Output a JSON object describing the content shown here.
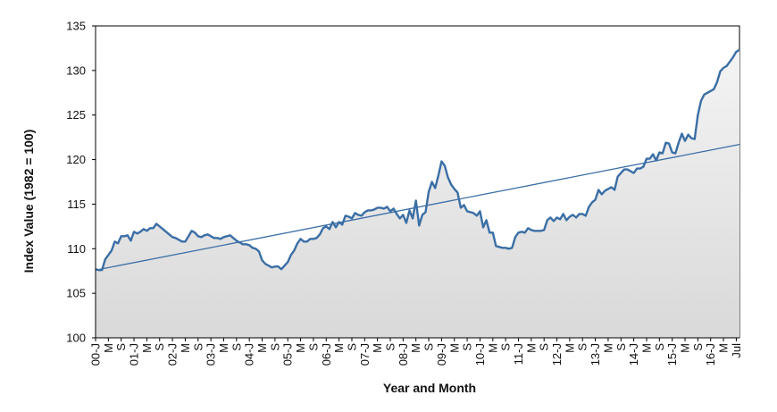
{
  "chart_data": {
    "type": "line",
    "title": "",
    "xlabel": "Year and Month",
    "ylabel": "Index Value (1982 = 100)",
    "ylim": [
      100,
      135
    ],
    "yticks": [
      100,
      105,
      110,
      115,
      120,
      125,
      130,
      135
    ],
    "grid": false,
    "legend": "none",
    "x_tick_labels": [
      "00-J",
      "M",
      "S",
      "01-J",
      "M",
      "S",
      "02-J",
      "M",
      "S",
      "03-J",
      "M",
      "S",
      "04-J",
      "M",
      "S",
      "05-J",
      "M",
      "S",
      "06-J",
      "M",
      "S",
      "07-J",
      "M",
      "S",
      "08-J",
      "M",
      "S",
      "09-J",
      "M",
      "S",
      "10-J",
      "M",
      "S",
      "11-J",
      "M",
      "S",
      "12-J",
      "M",
      "S",
      "13-J",
      "M",
      "S",
      "14-J",
      "M",
      "S",
      "15-J",
      "M",
      "S",
      "16-J",
      "M",
      "Jul"
    ],
    "series": [
      {
        "type": "line",
        "color": "#3a6ea5",
        "points": [
          [
            0,
            107.7
          ],
          [
            1,
            107.6
          ],
          [
            2,
            107.6
          ],
          [
            3,
            108.8
          ],
          [
            4,
            109.3
          ],
          [
            5,
            109.8
          ],
          [
            6,
            110.8
          ],
          [
            7,
            110.6
          ],
          [
            8,
            111.4
          ],
          [
            9,
            111.4
          ],
          [
            10,
            111.5
          ],
          [
            11,
            110.9
          ],
          [
            12,
            111.9
          ],
          [
            13,
            111.7
          ],
          [
            14,
            111.9
          ],
          [
            15,
            112.2
          ],
          [
            16,
            112.0
          ],
          [
            17,
            112.3
          ],
          [
            18,
            112.3
          ],
          [
            19,
            112.8
          ],
          [
            20,
            112.5
          ],
          [
            21,
            112.2
          ],
          [
            22,
            111.9
          ],
          [
            23,
            111.6
          ],
          [
            24,
            111.3
          ],
          [
            25,
            111.2
          ],
          [
            26,
            111.0
          ],
          [
            27,
            110.8
          ],
          [
            28,
            110.8
          ],
          [
            29,
            111.4
          ],
          [
            30,
            112.0
          ],
          [
            31,
            111.8
          ],
          [
            32,
            111.4
          ],
          [
            33,
            111.3
          ],
          [
            34,
            111.5
          ],
          [
            35,
            111.6
          ],
          [
            36,
            111.4
          ],
          [
            37,
            111.2
          ],
          [
            38,
            111.2
          ],
          [
            39,
            111.1
          ],
          [
            40,
            111.3
          ],
          [
            41,
            111.4
          ],
          [
            42,
            111.5
          ],
          [
            43,
            111.2
          ],
          [
            44,
            110.9
          ],
          [
            45,
            110.7
          ],
          [
            46,
            110.5
          ],
          [
            47,
            110.5
          ],
          [
            48,
            110.4
          ],
          [
            49,
            110.1
          ],
          [
            50,
            110.0
          ],
          [
            51,
            109.7
          ],
          [
            52,
            108.7
          ],
          [
            53,
            108.3
          ],
          [
            54,
            108.1
          ],
          [
            55,
            107.9
          ],
          [
            56,
            108.0
          ],
          [
            57,
            108.0
          ],
          [
            58,
            107.7
          ],
          [
            59,
            108.1
          ],
          [
            60,
            108.5
          ],
          [
            61,
            109.3
          ],
          [
            62,
            109.8
          ],
          [
            63,
            110.6
          ],
          [
            64,
            111.1
          ],
          [
            65,
            110.8
          ],
          [
            66,
            110.8
          ],
          [
            67,
            111.1
          ],
          [
            68,
            111.1
          ],
          [
            69,
            111.2
          ],
          [
            70,
            111.6
          ],
          [
            71,
            112.3
          ],
          [
            72,
            112.5
          ],
          [
            73,
            112.2
          ],
          [
            74,
            113.0
          ],
          [
            75,
            112.4
          ],
          [
            76,
            113.0
          ],
          [
            77,
            112.7
          ],
          [
            78,
            113.7
          ],
          [
            79,
            113.6
          ],
          [
            80,
            113.4
          ],
          [
            81,
            114.0
          ],
          [
            82,
            113.8
          ],
          [
            83,
            113.7
          ],
          [
            84,
            114.1
          ],
          [
            85,
            114.3
          ],
          [
            86,
            114.3
          ],
          [
            87,
            114.4
          ],
          [
            88,
            114.6
          ],
          [
            89,
            114.6
          ],
          [
            90,
            114.5
          ],
          [
            91,
            114.7
          ],
          [
            92,
            114.2
          ],
          [
            93,
            114.5
          ],
          [
            94,
            113.9
          ],
          [
            95,
            113.4
          ],
          [
            96,
            113.8
          ],
          [
            97,
            112.9
          ],
          [
            98,
            114.3
          ],
          [
            99,
            113.4
          ],
          [
            100,
            115.4
          ],
          [
            101,
            112.6
          ],
          [
            102,
            113.8
          ],
          [
            103,
            114.1
          ],
          [
            104,
            116.4
          ],
          [
            105,
            117.5
          ],
          [
            106,
            116.8
          ],
          [
            107,
            118.2
          ],
          [
            108,
            119.8
          ],
          [
            109,
            119.3
          ],
          [
            110,
            118.0
          ],
          [
            111,
            117.2
          ],
          [
            112,
            116.7
          ],
          [
            113,
            116.3
          ],
          [
            114,
            114.6
          ],
          [
            115,
            114.9
          ],
          [
            116,
            114.2
          ],
          [
            117,
            114.1
          ],
          [
            118,
            114.0
          ],
          [
            119,
            113.7
          ],
          [
            120,
            114.2
          ],
          [
            121,
            112.4
          ],
          [
            122,
            113.2
          ],
          [
            123,
            111.8
          ],
          [
            124,
            111.8
          ],
          [
            125,
            110.3
          ],
          [
            126,
            110.2
          ],
          [
            127,
            110.1
          ],
          [
            128,
            110.1
          ],
          [
            129,
            110.0
          ],
          [
            130,
            110.1
          ],
          [
            131,
            111.3
          ],
          [
            132,
            111.8
          ],
          [
            133,
            111.9
          ],
          [
            134,
            111.8
          ],
          [
            135,
            112.3
          ],
          [
            136,
            112.1
          ],
          [
            137,
            112.0
          ],
          [
            138,
            112.0
          ],
          [
            139,
            112.0
          ],
          [
            140,
            112.1
          ],
          [
            141,
            113.2
          ],
          [
            142,
            113.5
          ],
          [
            143,
            113.1
          ],
          [
            144,
            113.5
          ],
          [
            145,
            113.3
          ],
          [
            146,
            113.9
          ],
          [
            147,
            113.2
          ],
          [
            148,
            113.6
          ],
          [
            149,
            113.8
          ],
          [
            150,
            113.5
          ],
          [
            151,
            113.9
          ],
          [
            152,
            113.9
          ],
          [
            153,
            113.7
          ],
          [
            154,
            114.7
          ],
          [
            155,
            115.2
          ],
          [
            156,
            115.5
          ],
          [
            157,
            116.6
          ],
          [
            158,
            116.1
          ],
          [
            159,
            116.5
          ],
          [
            160,
            116.7
          ],
          [
            161,
            116.9
          ],
          [
            162,
            116.6
          ],
          [
            163,
            118.1
          ],
          [
            164,
            118.5
          ],
          [
            165,
            118.9
          ],
          [
            166,
            118.9
          ],
          [
            167,
            118.7
          ],
          [
            168,
            118.5
          ],
          [
            169,
            119.0
          ],
          [
            170,
            119.0
          ],
          [
            171,
            119.2
          ],
          [
            172,
            120.1
          ],
          [
            173,
            120.1
          ],
          [
            174,
            120.6
          ],
          [
            175,
            119.9
          ],
          [
            176,
            120.8
          ],
          [
            177,
            120.7
          ],
          [
            178,
            121.9
          ],
          [
            179,
            121.8
          ],
          [
            180,
            120.8
          ],
          [
            181,
            120.7
          ],
          [
            182,
            121.9
          ],
          [
            183,
            122.9
          ],
          [
            184,
            122.1
          ],
          [
            185,
            122.8
          ],
          [
            186,
            122.4
          ],
          [
            187,
            122.3
          ],
          [
            188,
            125.0
          ],
          [
            189,
            126.6
          ],
          [
            190,
            127.3
          ],
          [
            191,
            127.5
          ],
          [
            192,
            127.7
          ],
          [
            193,
            127.9
          ],
          [
            194,
            128.7
          ],
          [
            195,
            129.9
          ],
          [
            196,
            130.3
          ],
          [
            197,
            130.5
          ],
          [
            198,
            131.0
          ],
          [
            199,
            131.5
          ],
          [
            200,
            132.1
          ],
          [
            201,
            132.3
          ]
        ]
      },
      {
        "type": "trendline",
        "color": "#3a6ea5",
        "points": [
          [
            0,
            107.6
          ],
          [
            201,
            121.7
          ]
        ]
      }
    ]
  }
}
